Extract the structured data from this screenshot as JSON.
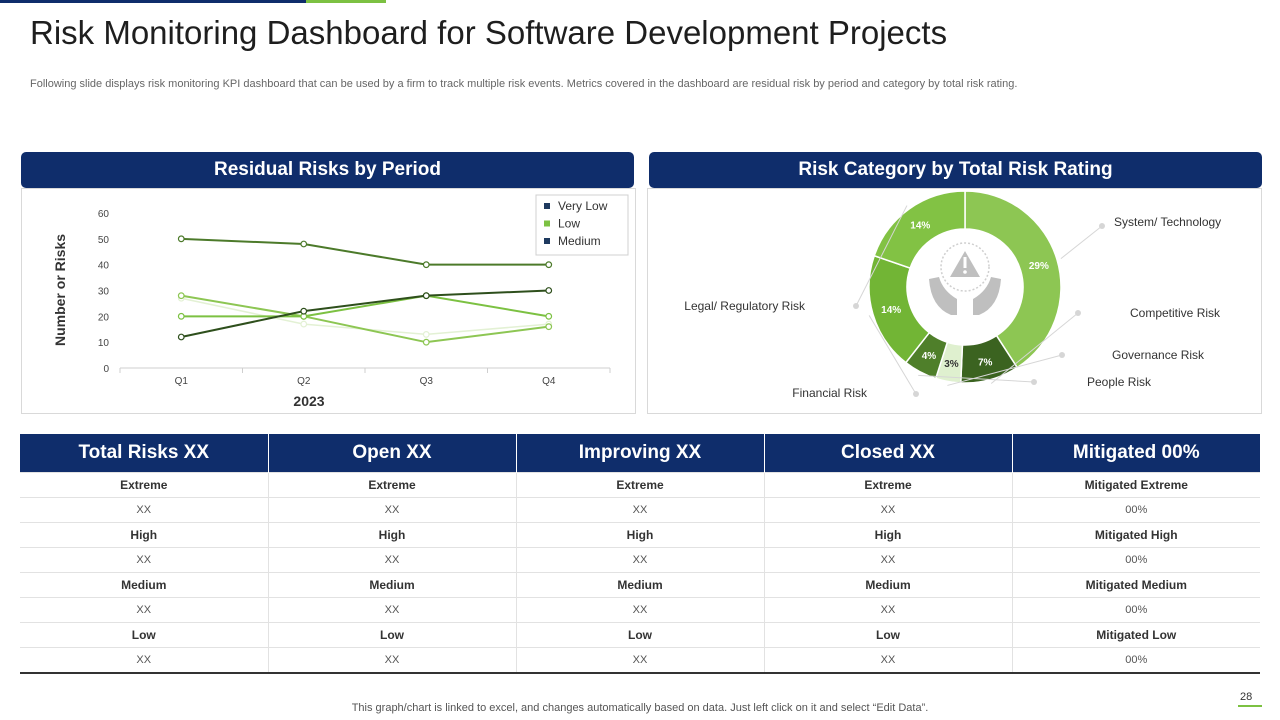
{
  "slide": {
    "title": "Risk Monitoring Dashboard for Software Development Projects",
    "subtitle": "Following slide displays risk monitoring KPI dashboard that can be used by a firm to track multiple risk events. Metrics covered in the dashboard are residual risk by period and category by total risk rating.",
    "footer_note": "This graph/chart is linked to excel, and changes automatically based on data. Just left click on it and select “Edit Data”.",
    "page_number": "28"
  },
  "panels": {
    "left_title": "Residual Risks by Period",
    "right_title": "Risk Category by Total Risk Rating"
  },
  "colors": {
    "navy": "#0f2d6b",
    "accent_green": "#7cc142"
  },
  "chart_data": [
    {
      "type": "line",
      "title": "Residual Risks by Period",
      "xlabel": "2023",
      "ylabel": "Number or Risks",
      "categories": [
        "Q1",
        "Q2",
        "Q3",
        "Q4"
      ],
      "ylim": [
        0,
        60
      ],
      "yticks": [
        0,
        10,
        20,
        30,
        40,
        50,
        60
      ],
      "grid": false,
      "legend_position": "top-right",
      "series": [
        {
          "name": "Very Low",
          "color": "#2e4f1c",
          "values": [
            12,
            22,
            28,
            30
          ]
        },
        {
          "name": "Low",
          "color": "#7cc142",
          "values": [
            20,
            20,
            28,
            20
          ]
        },
        {
          "name": "Medium",
          "color": "#4c7a2a",
          "values": [
            50,
            48,
            40,
            40
          ]
        },
        {
          "name": "",
          "color": "#8dc653",
          "values": [
            28,
            20,
            10,
            16
          ],
          "legend": false
        },
        {
          "name": "",
          "color": "#e3f1d4",
          "values": [
            27,
            17,
            13,
            17
          ],
          "legend": false
        }
      ],
      "legend": [
        {
          "label": "Very Low",
          "color": "#1e3a5f"
        },
        {
          "label": "Low",
          "color": "#7cc142"
        },
        {
          "label": "Medium",
          "color": "#1e3a5f"
        }
      ]
    },
    {
      "type": "pie",
      "subtype": "donut",
      "title": "Risk Category by Total Risk Rating",
      "center_icon": "risk-warning-hands-icon",
      "slices": [
        {
          "label": "System/ Technology",
          "value": 29,
          "display": "29%",
          "color": "#8dc653"
        },
        {
          "label": "Competitive Risk",
          "value": 7,
          "display": "7%",
          "color": "#3b6320"
        },
        {
          "label": "Governance Risk",
          "value": 3,
          "display": "3%",
          "color": "#dff0cf"
        },
        {
          "label": "People Risk",
          "value": 4,
          "display": "4%",
          "color": "#4f7f2a"
        },
        {
          "label": "Financial Risk",
          "value": 14,
          "display": "14%",
          "color": "#72b535"
        },
        {
          "label": "Legal/ Regulatory Risk",
          "value": 14,
          "display": "14%",
          "color": "#82c244"
        }
      ]
    }
  ],
  "table": {
    "headers": [
      "Total Risks XX",
      "Open XX",
      "Improving XX",
      "Closed XX",
      "Mitigated 00%"
    ],
    "rows": [
      {
        "kind": "label",
        "cells": [
          "Extreme",
          "Extreme",
          "Extreme",
          "Extreme",
          "Mitigated Extreme"
        ]
      },
      {
        "kind": "value",
        "cells": [
          "XX",
          "XX",
          "XX",
          "XX",
          "00%"
        ]
      },
      {
        "kind": "label",
        "cells": [
          "High",
          "High",
          "High",
          "High",
          "Mitigated High"
        ]
      },
      {
        "kind": "value",
        "cells": [
          "XX",
          "XX",
          "XX",
          "XX",
          "00%"
        ]
      },
      {
        "kind": "label",
        "cells": [
          "Medium",
          "Medium",
          "Medium",
          "Medium",
          "Mitigated Medium"
        ]
      },
      {
        "kind": "value",
        "cells": [
          "XX",
          "XX",
          "XX",
          "XX",
          "00%"
        ]
      },
      {
        "kind": "label",
        "cells": [
          "Low",
          "Low",
          "Low",
          "Low",
          "Mitigated Low"
        ]
      },
      {
        "kind": "value",
        "cells": [
          "XX",
          "XX",
          "XX",
          "XX",
          "00%"
        ]
      }
    ]
  }
}
